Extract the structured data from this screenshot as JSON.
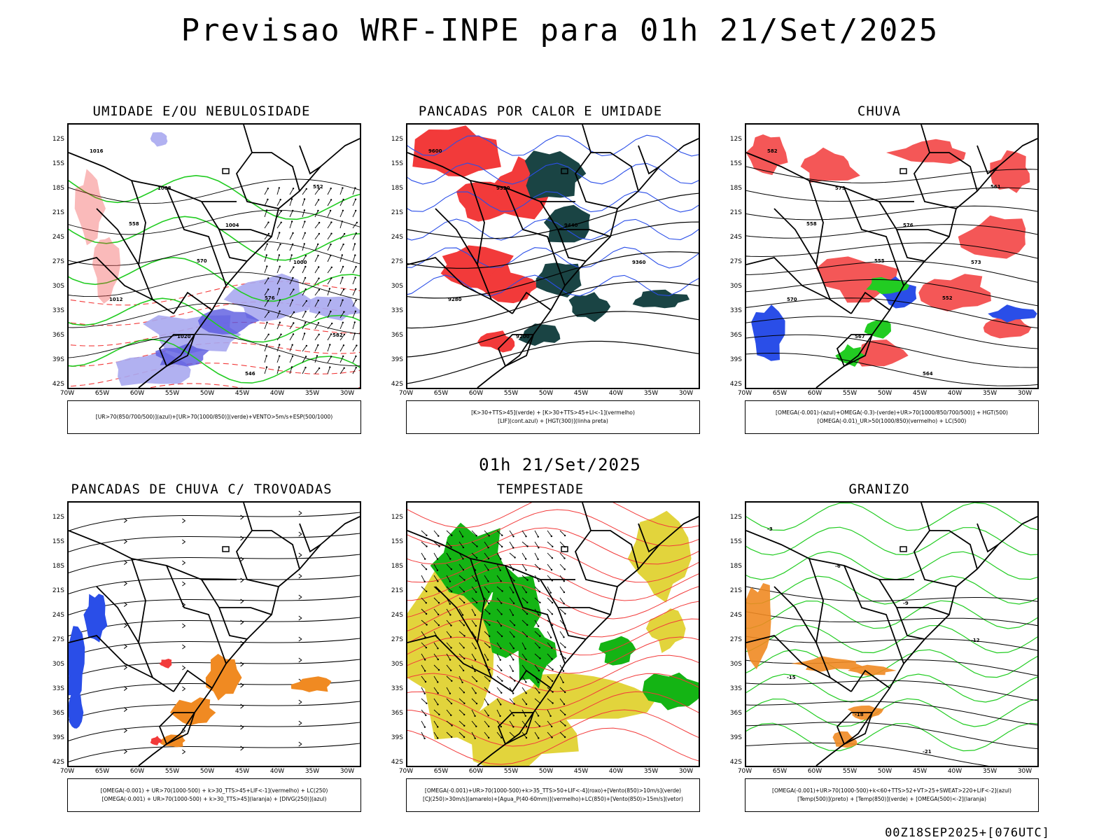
{
  "title": "Previsao WRF-INPE  para 01h 21/Set/2025",
  "subtitle": "01h 21/Set/2025",
  "footer": "00Z18SEP2025+[076UTC]",
  "lat_ticks": [
    "12S",
    "15S",
    "18S",
    "21S",
    "24S",
    "27S",
    "30S",
    "33S",
    "36S",
    "39S",
    "42S"
  ],
  "lon_ticks": [
    "70W",
    "65W",
    "60W",
    "55W",
    "50W",
    "45W",
    "40W",
    "35W",
    "30W"
  ],
  "colors": {
    "red": "#f23a3a",
    "blue": "#2a4ee8",
    "green": "#22cc22",
    "lavender": "#a8a8f0",
    "teal": "#1a4444",
    "orange": "#f08a22",
    "yellow": "#e2d43c",
    "black": "#000000"
  },
  "panels": [
    {
      "id": "umidade",
      "title": "UMIDADE E/OU NEBULOSIDADE",
      "legend": [
        "[UR>70(850/700/500)](azul)+[UR>70(1000/850)](verde)+VENTO>5m/s+ESP(500/1000)"
      ],
      "labels": [
        "1016",
        "1008",
        "1004",
        "1000",
        "1012",
        "1020",
        "546",
        "552",
        "558",
        "570",
        "576",
        "582"
      ]
    },
    {
      "id": "pancadas",
      "title": "PANCADAS POR CALOR E UMIDADE",
      "legend": [
        "[K>30+TTS>45](verde) + [K>30+TTS>45+LI<-1](vermelho)",
        "[LIF](cont.azul) + [HGT(300)](linha preta)"
      ],
      "labels": [
        "9600",
        "9520",
        "9440",
        "9360",
        "9280",
        "9200"
      ]
    },
    {
      "id": "chuva",
      "title": "CHUVA",
      "legend": [
        "[OMEGA(-0.001)-(azul)+OMEGA(-0.3)-(verde)+UR>70(1000/850/700/500)] + HGT(500)",
        "[OMEGA(-0.01)_UR>50(1000/850)(vermelho) + LC(500)"
      ],
      "labels": [
        "582",
        "579",
        "576",
        "573",
        "570",
        "567",
        "564",
        "561",
        "558",
        "555",
        "552"
      ]
    },
    {
      "id": "trovoadas",
      "title": "PANCADAS DE CHUVA C/ TROVOADAS",
      "legend": [
        "[OMEGA(-0.001) + UR>70(1000-500) + k>30_TTS>45+LIF<-1](vermelho) + LC(250)",
        "[OMEGA(-0.001) + UR>70(1000-500) + k>30_TTS>45](laranja) + [DIVG(250)](azul)"
      ],
      "labels": []
    },
    {
      "id": "tempestade",
      "title": "TEMPESTADE",
      "legend": [
        "[OMEGA(-0.001)+UR>70(1000-500)+k>35_TTS>50+LIF<-4](roxo)+[Vento(850)>10m/s](verde)",
        "[CJ(250)>30m/s](amarelo)+[Agua_P(40-60mm)](vermelho)+LC(850)+[Vento(850)>15m/s](vetor)"
      ],
      "labels": []
    },
    {
      "id": "granizo",
      "title": "GRANIZO",
      "legend": [
        "[OMEGA(-0.001)+UR>70(1000-500)+k<60+TTS>52+VT>25+SWEAT>220+LIF<-2](azul)",
        "[Temp(500)](preto) + [Temp(850)](verde) + [OMEGA(500)<-2](laranja)"
      ],
      "labels": [
        "-3",
        "-6",
        "-9",
        "-12",
        "-15",
        "-18",
        "-21"
      ]
    }
  ]
}
